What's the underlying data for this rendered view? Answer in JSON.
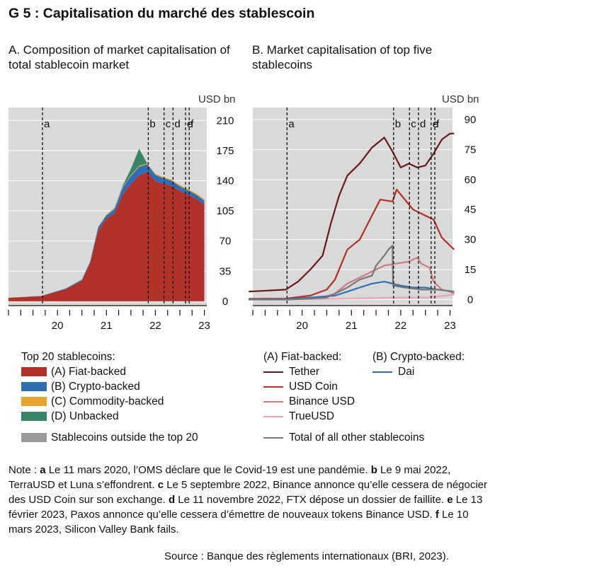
{
  "title": "G 5 : Capitalisation du marché des stablescoin",
  "unit_label": "USD bn",
  "chart_data": [
    {
      "type": "area",
      "title": "A. Composition of market capitalisation of total stablecoin market",
      "x_axis": {
        "range": [
          2019.5,
          2023.55
        ],
        "tick_labels": [
          "20",
          "21",
          "22",
          "23"
        ],
        "tick_positions": [
          2020.5,
          2021.5,
          2022.5,
          2023.5
        ]
      },
      "y_axis": {
        "range": [
          -5,
          225
        ],
        "ticks": [
          0,
          35,
          70,
          105,
          140,
          175,
          210
        ],
        "side": "right",
        "unit": "USD bn"
      },
      "event_markers": [
        {
          "label": "a",
          "x": "2020-03-11"
        },
        {
          "label": "b",
          "x": "2022-05-09"
        },
        {
          "label": "c",
          "x": "2022-09-05"
        },
        {
          "label": "d",
          "x": "2022-11-11"
        },
        {
          "label": "e",
          "x": "2023-02-13"
        },
        {
          "label": "f",
          "x": "2023-03-10"
        }
      ],
      "x": [
        "2019-07",
        "2020-03",
        "2020-09",
        "2021-01",
        "2021-03",
        "2021-05",
        "2021-07",
        "2021-09",
        "2021-11",
        "2022-01",
        "2022-03",
        "2022-05",
        "2022-07",
        "2022-09",
        "2022-11",
        "2023-01",
        "2023-03",
        "2023-05",
        "2023-07"
      ],
      "stacked": true,
      "series": [
        {
          "name": "(A) Fiat-backed",
          "color": "#b0302a",
          "values": [
            4,
            6,
            14,
            24,
            44,
            82,
            96,
            102,
            124,
            136,
            146,
            150,
            140,
            136,
            134,
            128,
            124,
            119,
            112
          ]
        },
        {
          "name": "(B) Crypto-backed",
          "color": "#2f6db5",
          "values": [
            0,
            0.2,
            0.8,
            1.2,
            1.8,
            4,
            4,
            5,
            8,
            9.5,
            10,
            9,
            7,
            7,
            6,
            5.5,
            5,
            5,
            5
          ]
        },
        {
          "name": "(C) Commodity-backed",
          "color": "#e6a431",
          "values": [
            0,
            0,
            0,
            0.3,
            0.5,
            0.7,
            0.8,
            0.9,
            1,
            1.1,
            1.2,
            1.1,
            1.1,
            1.1,
            1.2,
            1.3,
            1.3,
            1.3,
            1.3
          ]
        },
        {
          "name": "(D) Unbacked",
          "color": "#3a8568",
          "values": [
            0,
            0,
            0,
            0,
            0,
            0,
            0,
            0.5,
            1.5,
            7,
            20,
            0,
            0,
            0,
            0,
            0,
            0,
            0,
            0
          ]
        },
        {
          "name": "Stablecoins outside the top 20",
          "color": "#999999",
          "values": [
            0,
            0,
            0,
            0,
            0,
            0,
            0,
            0,
            0,
            0,
            0,
            0,
            0,
            0,
            0,
            0,
            0,
            0,
            0
          ]
        }
      ]
    },
    {
      "type": "line",
      "title": "B. Market capitalisation of top five stablecoins",
      "x_axis": {
        "range": [
          2019.5,
          2023.55
        ],
        "tick_labels": [
          "20",
          "21",
          "22",
          "23"
        ],
        "tick_positions": [
          2020.5,
          2021.5,
          2022.5,
          2023.5
        ]
      },
      "y_axis": {
        "range": [
          -3,
          96
        ],
        "ticks": [
          0,
          15,
          30,
          45,
          60,
          75,
          90
        ],
        "side": "right",
        "unit": "USD bn"
      },
      "event_markers": [
        {
          "label": "a",
          "x": "2020-03-11"
        },
        {
          "label": "b",
          "x": "2022-05-09"
        },
        {
          "label": "c",
          "x": "2022-09-05"
        },
        {
          "label": "d",
          "x": "2022-11-11"
        },
        {
          "label": "e",
          "x": "2023-02-13"
        },
        {
          "label": "f",
          "x": "2023-03-10"
        }
      ],
      "series": [
        {
          "name": "Tether",
          "group": "(A) Fiat-backed",
          "color": "#6b1818",
          "x": [
            "2019-06",
            "2020-03",
            "2020-06",
            "2020-09",
            "2020-12",
            "2021-02",
            "2021-04",
            "2021-06",
            "2021-09",
            "2021-12",
            "2022-03",
            "2022-05",
            "2022-07",
            "2022-09",
            "2022-11",
            "2023-01",
            "2023-03",
            "2023-05",
            "2023-07",
            "2023-08"
          ],
          "values": [
            4,
            5,
            9,
            15,
            22,
            38,
            52,
            62,
            68,
            76,
            81,
            74,
            66,
            68,
            66,
            67,
            73,
            80,
            83,
            83
          ]
        },
        {
          "name": "USD Coin",
          "group": "(A) Fiat-backed",
          "color": "#b0302a",
          "x": [
            "2019-06",
            "2020-03",
            "2020-09",
            "2021-01",
            "2021-03",
            "2021-06",
            "2021-09",
            "2021-12",
            "2022-02",
            "2022-05",
            "2022-06",
            "2022-08",
            "2022-10",
            "2022-12",
            "2023-02",
            "2023-03",
            "2023-05",
            "2023-07",
            "2023-08"
          ],
          "values": [
            0.4,
            0.5,
            2,
            5,
            10,
            25,
            30,
            42,
            50,
            49,
            55,
            50,
            45,
            43,
            41,
            40,
            31,
            27,
            25
          ]
        },
        {
          "name": "Binance USD",
          "group": "(A) Fiat-backed",
          "color": "#d07a80",
          "x": [
            "2019-06",
            "2020-06",
            "2020-12",
            "2021-03",
            "2021-06",
            "2021-09",
            "2021-12",
            "2022-03",
            "2022-06",
            "2022-09",
            "2022-11",
            "2022-12",
            "2023-02",
            "2023-03",
            "2023-05",
            "2023-07",
            "2023-08"
          ],
          "values": [
            0.1,
            0.2,
            1,
            3,
            8,
            11,
            14,
            17,
            18,
            19,
            21,
            18,
            16,
            9,
            5,
            4,
            3
          ]
        },
        {
          "name": "TrueUSD",
          "group": "(A) Fiat-backed",
          "color": "#eaa4b4",
          "x": [
            "2019-06",
            "2021-01",
            "2022-06",
            "2023-01",
            "2023-06",
            "2023-08"
          ],
          "values": [
            0,
            0.3,
            1,
            1,
            2,
            2.5
          ]
        },
        {
          "name": "Dai",
          "group": "(B) Crypto-backed",
          "color": "#2f6db5",
          "x": [
            "2019-06",
            "2020-03",
            "2020-09",
            "2021-03",
            "2021-06",
            "2021-09",
            "2021-12",
            "2022-03",
            "2022-05",
            "2022-07",
            "2022-10",
            "2023-01",
            "2023-04",
            "2023-08"
          ],
          "values": [
            0.1,
            0.2,
            1,
            2,
            4,
            6,
            8,
            9,
            8,
            7,
            6,
            6,
            5,
            4
          ]
        },
        {
          "name": "Total of all other stablecoins",
          "color": "#777777",
          "x": [
            "2019-06",
            "2020-03",
            "2020-09",
            "2021-01",
            "2021-03",
            "2021-06",
            "2021-09",
            "2021-12",
            "2022-01",
            "2022-03",
            "2022-04",
            "2022-05",
            "2022-05b",
            "2022-08",
            "2022-12",
            "2023-04",
            "2023-08"
          ],
          "values": [
            0,
            0,
            0.5,
            1,
            3,
            6,
            10,
            12,
            17,
            22,
            25,
            27,
            7,
            6,
            5,
            5,
            4
          ]
        }
      ]
    }
  ],
  "legend": {
    "left_heading": "Top 20 stablecoins:",
    "left_items": [
      "(A) Fiat-backed",
      "(B) Crypto-backed",
      "(C) Commodity-backed",
      "(D) Unbacked"
    ],
    "left_extra": "Stablecoins outside the top 20",
    "fiat_heading": "(A) Fiat-backed:",
    "fiat_items": [
      "Tether",
      "USD Coin",
      "Binance USD",
      "TrueUSD"
    ],
    "crypto_heading": "(B) Crypto-backed:",
    "crypto_items": [
      "Dai"
    ],
    "other": "Total of all other stablecoins"
  },
  "note": {
    "prefix": "Note : ",
    "a_key": "a",
    "a_text": " Le 11 mars 2020, l’OMS déclare que le Covid-19 est une pandémie. ",
    "b_key": "b",
    "b_text": " Le 9 mai 2022, TerraUSD et Luna s’effondrent. ",
    "c_key": "c",
    "c_text": " Le 5 septembre 2022, Binance annonce qu’elle cessera de négocier des USD Coin sur son exchange. ",
    "d_key": "d",
    "d_text": " Le 11 novembre 2022, FTX dépose un dossier de faillite. ",
    "e_key": "e",
    "e_text": " Le 13 février 2023, Paxos annonce qu’elle cessera d’émettre de nouveaux tokens Binance USD. ",
    "f_key": "f",
    "f_text": " Le 10 mars 2023, Silicon Valley Bank fails."
  },
  "source": "Source : Banque des règlements internationaux (BRI, 2023)."
}
